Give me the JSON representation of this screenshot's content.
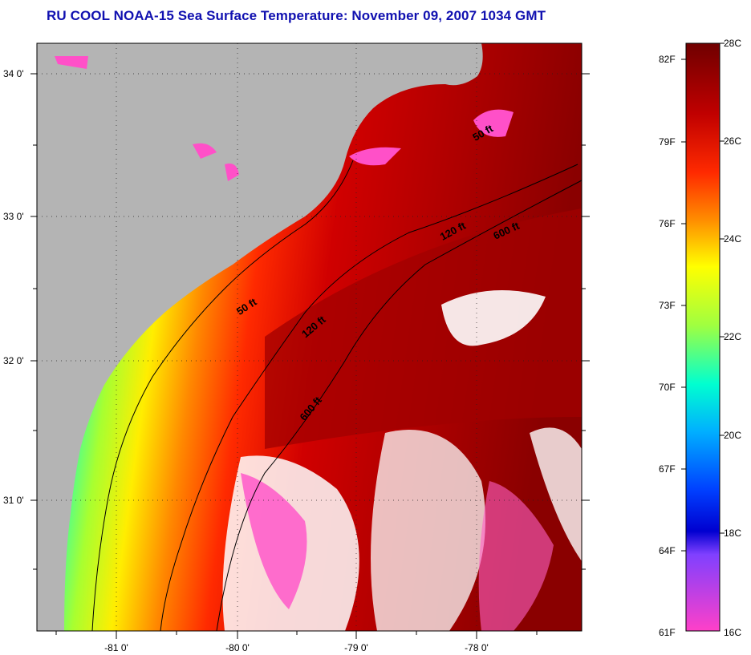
{
  "title": "RU COOL  NOAA-15  Sea Surface Temperature:  November 09, 2007 1034 GMT",
  "map": {
    "latitude_labels": [
      "34 0'",
      "33 0'",
      "32 0'",
      "31 0'"
    ],
    "longitude_labels": [
      "-81 0'",
      "-80 0'",
      "-79 0'",
      "-78 0'"
    ],
    "contour_labels": [
      "50 ft",
      "120 ft",
      "600 ft",
      "50 ft",
      "120 ft",
      "600 ft"
    ],
    "land_color": "#b4b4b4",
    "cloud_color": "#ffffff"
  },
  "colorbar": {
    "fahrenheit_labels": [
      "82F",
      "79F",
      "76F",
      "73F",
      "70F",
      "67F",
      "64F",
      "61F"
    ],
    "celsius_labels": [
      "28C",
      "26C",
      "24C",
      "22C",
      "20C",
      "18C",
      "16C"
    ],
    "colors": [
      "#7a0000",
      "#c80000",
      "#ff3000",
      "#ff9a00",
      "#ffff00",
      "#6cff5a",
      "#00ffff",
      "#0090ff",
      "#0000ff",
      "#a040ff",
      "#ff40c8"
    ]
  }
}
